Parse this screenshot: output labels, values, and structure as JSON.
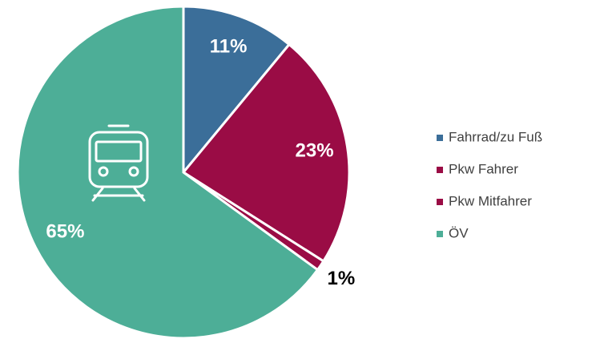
{
  "chart_data": {
    "type": "pie",
    "categories": [
      "Fahrrad/zu Fuß",
      "Pkw Fahrer",
      "Pkw Mitfahrer",
      "ÖV"
    ],
    "values": [
      11,
      23,
      1,
      65
    ],
    "value_labels": [
      "11%",
      "23%",
      "1%",
      "65%"
    ],
    "colors": [
      "#3b6e99",
      "#9a0c45",
      "#9a0c45",
      "#4dae97"
    ],
    "legend": "right"
  }
}
